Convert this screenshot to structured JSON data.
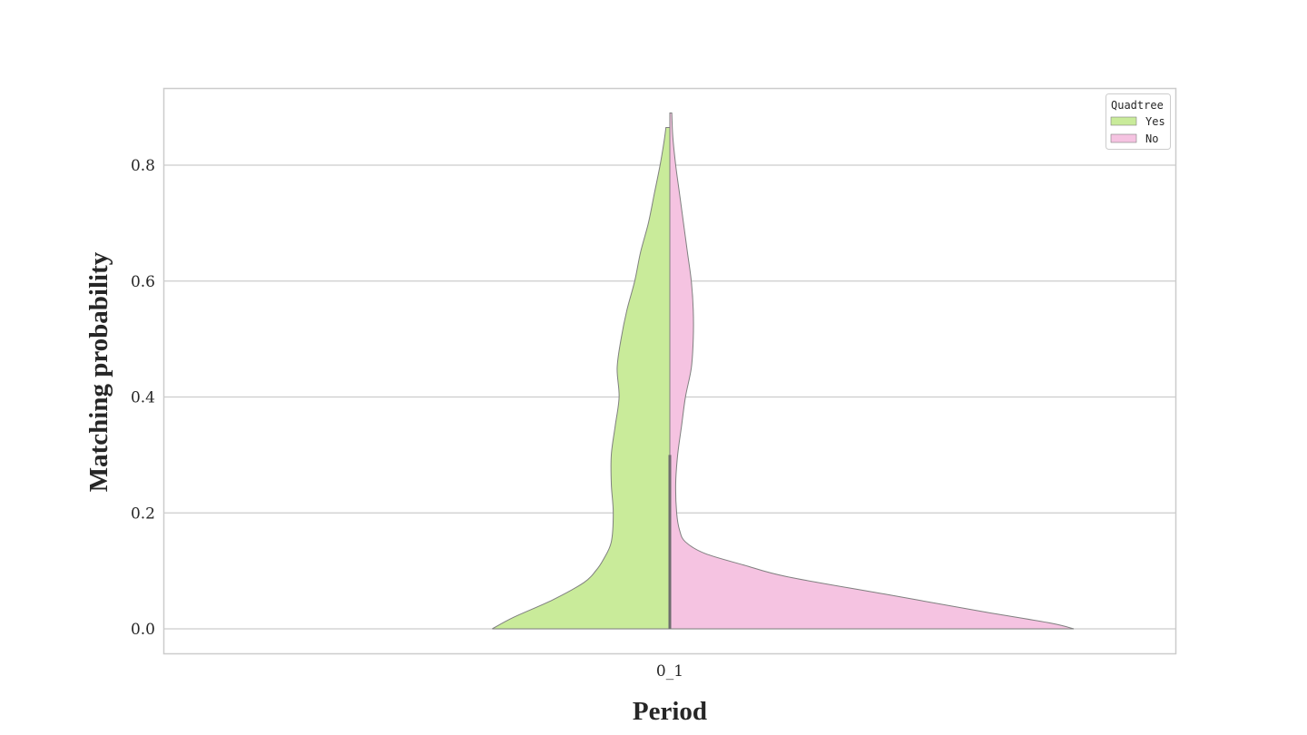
{
  "chart_data": {
    "type": "violin",
    "split": true,
    "categories": [
      "0_1"
    ],
    "xlabel": "Period",
    "ylabel": "Matching probability",
    "ylim": [
      -0.04,
      0.92
    ],
    "yticks": [
      0.0,
      0.2,
      0.4,
      0.6,
      0.8
    ],
    "ytick_labels": [
      "0.0",
      "0.2",
      "0.4",
      "0.6",
      "0.8"
    ],
    "grid": "horizontal",
    "legend": {
      "title": "Quadtree",
      "placement": "top-right",
      "entries": [
        {
          "label": "Yes",
          "color": "#c9eb9a"
        },
        {
          "label": "No",
          "color": "#f5c3e1"
        }
      ]
    },
    "series": [
      {
        "name": "Yes",
        "side": "left",
        "color": "#c9eb9a",
        "y_min": 0.0,
        "y_max": 0.865,
        "density_profile": [
          [
            0.0,
            0.91
          ],
          [
            0.02,
            0.8
          ],
          [
            0.05,
            0.6
          ],
          [
            0.08,
            0.44
          ],
          [
            0.1,
            0.38
          ],
          [
            0.12,
            0.34
          ],
          [
            0.15,
            0.3
          ],
          [
            0.2,
            0.29
          ],
          [
            0.25,
            0.3
          ],
          [
            0.3,
            0.3
          ],
          [
            0.35,
            0.28
          ],
          [
            0.4,
            0.26
          ],
          [
            0.45,
            0.27
          ],
          [
            0.5,
            0.25
          ],
          [
            0.55,
            0.22
          ],
          [
            0.6,
            0.18
          ],
          [
            0.65,
            0.15
          ],
          [
            0.7,
            0.11
          ],
          [
            0.75,
            0.08
          ],
          [
            0.8,
            0.05
          ],
          [
            0.84,
            0.03
          ],
          [
            0.865,
            0.02
          ]
        ],
        "inner_box": {
          "q1": 0.0,
          "q3": 0.3
        }
      },
      {
        "name": "No",
        "side": "right",
        "color": "#f5c3e1",
        "y_min": 0.0,
        "y_max": 0.89,
        "density_profile": [
          [
            0.0,
            2.07
          ],
          [
            0.01,
            1.95
          ],
          [
            0.03,
            1.6
          ],
          [
            0.06,
            1.1
          ],
          [
            0.09,
            0.6
          ],
          [
            0.11,
            0.38
          ],
          [
            0.13,
            0.18
          ],
          [
            0.15,
            0.08
          ],
          [
            0.17,
            0.05
          ],
          [
            0.2,
            0.035
          ],
          [
            0.25,
            0.03
          ],
          [
            0.3,
            0.04
          ],
          [
            0.35,
            0.06
          ],
          [
            0.4,
            0.08
          ],
          [
            0.45,
            0.11
          ],
          [
            0.5,
            0.12
          ],
          [
            0.55,
            0.12
          ],
          [
            0.6,
            0.11
          ],
          [
            0.65,
            0.09
          ],
          [
            0.7,
            0.07
          ],
          [
            0.75,
            0.05
          ],
          [
            0.8,
            0.03
          ],
          [
            0.85,
            0.015
          ],
          [
            0.89,
            0.01
          ]
        ],
        "inner_box": {
          "q1": 0.0,
          "q3": 0.3
        }
      }
    ]
  }
}
